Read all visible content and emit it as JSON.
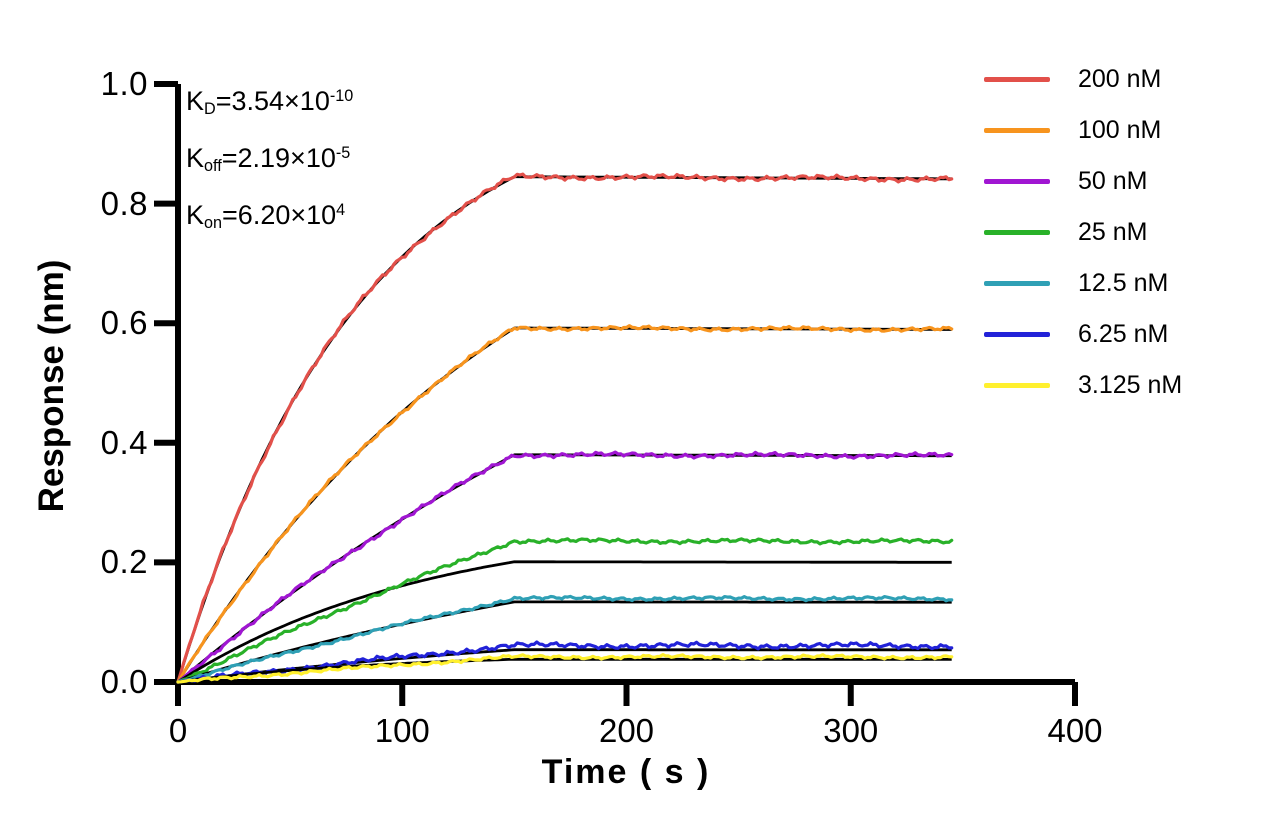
{
  "annotation": {
    "lines": [
      {
        "base": "K",
        "sub": "D",
        "mid": "=3.54×10",
        "sup": "-10"
      },
      {
        "base": "K",
        "sub": "off",
        "mid": "=2.19×10",
        "sup": "-5"
      },
      {
        "base": "K",
        "sub": "on",
        "mid": "=6.20×10",
        "sup": "4"
      }
    ]
  },
  "axes": {
    "x_label": "Time ( s )",
    "y_label": "Response (nm)",
    "x_tick_labels": [
      "0",
      "100",
      "200",
      "300",
      "400"
    ],
    "y_tick_labels": [
      "0.0",
      "0.2",
      "0.4",
      "0.6",
      "0.8",
      "1.0"
    ],
    "color": "#000000"
  },
  "chart_data": {
    "type": "line",
    "title": "",
    "xlabel": "Time ( s )",
    "ylabel": "Response (nm)",
    "xlim": [
      0,
      400
    ],
    "ylim": [
      0,
      1.0
    ],
    "x_ticks": [
      0,
      100,
      200,
      300,
      400
    ],
    "y_ticks": [
      0,
      0.2,
      0.4,
      0.6,
      0.8,
      1.0
    ],
    "grid": false,
    "legend_position": "top-right",
    "association_end_s": 150,
    "curve_end_s": 345,
    "KD_M": 3.54e-10,
    "koff_per_s": 2.19e-05,
    "kon_per_M_s": 62000,
    "fit_color": "#000000",
    "background_color": "#ffffff",
    "series": [
      {
        "label": "200 nM",
        "concentration_nM": 200,
        "color": "#E2504A",
        "plateau_nm": 0.845,
        "kobs_per_s": 0.0124,
        "fit_plateau_nm": 0.845,
        "fit_kobs_per_s": 0.0124,
        "noise_nm": 0.0045
      },
      {
        "label": "100 nM",
        "concentration_nM": 100,
        "color": "#F7941E",
        "plateau_nm": 0.592,
        "kobs_per_s": 0.0062,
        "fit_plateau_nm": 0.592,
        "fit_kobs_per_s": 0.0062,
        "noise_nm": 0.0035
      },
      {
        "label": "50 nM",
        "concentration_nM": 50,
        "color": "#A016D2",
        "plateau_nm": 0.38,
        "kobs_per_s": 0.0031,
        "fit_plateau_nm": 0.38,
        "fit_kobs_per_s": 0.0031,
        "noise_nm": 0.004
      },
      {
        "label": "25 nM",
        "concentration_nM": 25,
        "color": "#29B129",
        "plateau_nm": 0.236,
        "kobs_per_s": 0.0016,
        "fit_plateau_nm": 0.201,
        "fit_kobs_per_s": 0.009,
        "noise_nm": 0.0035
      },
      {
        "label": "12.5 nM",
        "concentration_nM": 12.5,
        "color": "#2FA0B5",
        "plateau_nm": 0.14,
        "kobs_per_s": 0.0014,
        "fit_plateau_nm": 0.134,
        "fit_kobs_per_s": 0.0035,
        "noise_nm": 0.003
      },
      {
        "label": "6.25 nM",
        "concentration_nM": 6.25,
        "color": "#2222D8",
        "plateau_nm": 0.061,
        "kobs_per_s": 0.0012,
        "fit_plateau_nm": 0.054,
        "fit_kobs_per_s": 0.004,
        "noise_nm": 0.0045
      },
      {
        "label": "3.125 nM",
        "concentration_nM": 3.125,
        "color": "#FFF02E",
        "plateau_nm": 0.042,
        "kobs_per_s": 0.0012,
        "fit_plateau_nm": 0.038,
        "fit_kobs_per_s": 0.01,
        "noise_nm": 0.003
      }
    ]
  }
}
